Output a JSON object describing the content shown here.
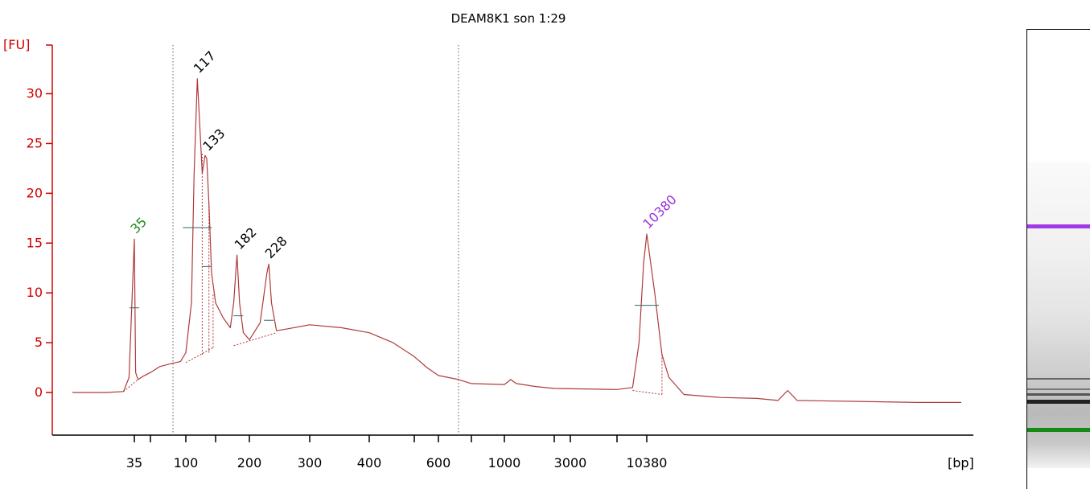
{
  "chart_data": {
    "type": "line",
    "title": "DEAM8K1 son 1:29",
    "ylabel": "[FU]",
    "xlabel": "[bp]",
    "ylim": [
      -4.5,
      35
    ],
    "yticks": [
      0,
      5,
      10,
      15,
      20,
      25,
      30
    ],
    "xtick_labels": [
      "35",
      "100",
      "200",
      "300",
      "400",
      "600",
      "1000",
      "3000",
      "10380"
    ],
    "x_unlabeled_ticks": 6,
    "grid": false,
    "colors": {
      "axis": "#d00000",
      "trace": "#b03a3a",
      "lower_marker": "#1a8a1a",
      "upper_marker": "#9b30e0",
      "peak_label": "#000000"
    },
    "peaks": [
      {
        "label": "35",
        "bp": 35,
        "fu": 15.4,
        "role": "lower marker"
      },
      {
        "label": "117",
        "bp": 117,
        "fu": 31.5
      },
      {
        "label": "133",
        "bp": 133,
        "fu": 23.7
      },
      {
        "label": "182",
        "bp": 182,
        "fu": 13.8
      },
      {
        "label": "228",
        "bp": 228,
        "fu": 12.9
      },
      {
        "label": "10380",
        "bp": 10380,
        "fu": 15.9,
        "role": "upper marker"
      }
    ],
    "series": [
      {
        "points_bp_fu": [
          [
            25,
            0.0
          ],
          [
            30,
            0.0
          ],
          [
            33,
            0.1
          ],
          [
            34,
            1.5
          ],
          [
            35,
            15.4
          ],
          [
            36,
            2.0
          ],
          [
            38,
            1.3
          ],
          [
            42,
            1.6
          ],
          [
            50,
            2.0
          ],
          [
            60,
            2.6
          ],
          [
            75,
            2.9
          ],
          [
            90,
            3.1
          ],
          [
            100,
            4.0
          ],
          [
            108,
            9.0
          ],
          [
            112,
            22.0
          ],
          [
            117,
            31.5
          ],
          [
            120,
            28.0
          ],
          [
            125,
            22.0
          ],
          [
            130,
            23.8
          ],
          [
            133,
            23.5
          ],
          [
            137,
            19.0
          ],
          [
            142,
            12.0
          ],
          [
            150,
            9.0
          ],
          [
            160,
            7.5
          ],
          [
            170,
            6.5
          ],
          [
            175,
            9.0
          ],
          [
            180,
            13.8
          ],
          [
            184,
            9.0
          ],
          [
            190,
            6.0
          ],
          [
            200,
            5.3
          ],
          [
            215,
            7.0
          ],
          [
            225,
            12.0
          ],
          [
            228,
            12.9
          ],
          [
            232,
            9.0
          ],
          [
            240,
            6.2
          ],
          [
            260,
            6.4
          ],
          [
            300,
            6.8
          ],
          [
            350,
            6.5
          ],
          [
            400,
            6.0
          ],
          [
            450,
            5.0
          ],
          [
            500,
            3.6
          ],
          [
            550,
            2.5
          ],
          [
            600,
            1.7
          ],
          [
            650,
            1.3
          ],
          [
            800,
            0.9
          ],
          [
            1000,
            0.8
          ],
          [
            1150,
            1.3
          ],
          [
            1300,
            0.9
          ],
          [
            2000,
            0.6
          ],
          [
            3000,
            0.4
          ],
          [
            6000,
            0.3
          ],
          [
            8000,
            0.5
          ],
          [
            9000,
            5.0
          ],
          [
            9800,
            13.0
          ],
          [
            10380,
            15.9
          ],
          [
            10800,
            10.0
          ],
          [
            11200,
            3.8
          ],
          [
            11600,
            1.5
          ],
          [
            12500,
            -0.2
          ],
          [
            15000,
            -0.5
          ],
          [
            18000,
            -0.6
          ],
          [
            20000,
            -0.8
          ],
          [
            21000,
            0.2
          ],
          [
            22000,
            -0.8
          ],
          [
            30000,
            -0.9
          ],
          [
            40000,
            -1.0
          ],
          [
            50000,
            -1.0
          ]
        ]
      }
    ]
  }
}
